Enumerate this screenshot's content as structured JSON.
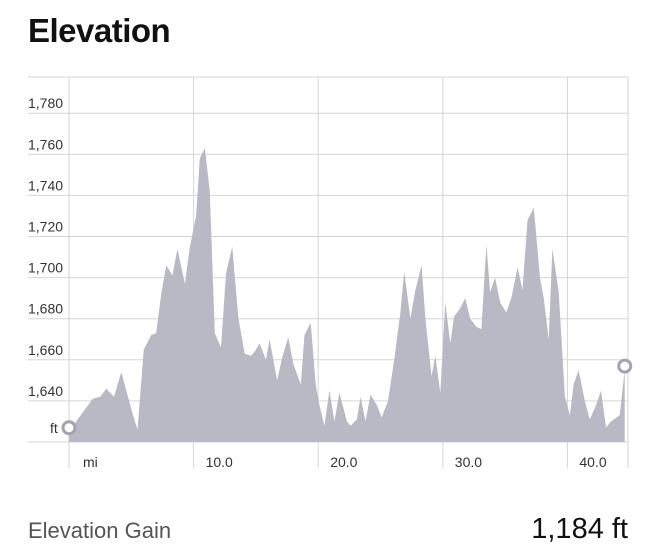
{
  "header": {
    "title": "Elevation"
  },
  "colors": {
    "area_fill": "#b9b8c5",
    "grid": "#d6d6d6",
    "marker": "#a3a2b0"
  },
  "chart_data": {
    "type": "area",
    "ylabel_unit": "ft",
    "xlabel_unit": "mi",
    "ylim": [
      1620,
      1800
    ],
    "xlim": [
      0,
      44.6
    ],
    "yticks": [
      {
        "value": 1640,
        "label": "1,640"
      },
      {
        "value": 1660,
        "label": "1,660"
      },
      {
        "value": 1680,
        "label": "1,680"
      },
      {
        "value": 1700,
        "label": "1,700"
      },
      {
        "value": 1720,
        "label": "1,720"
      },
      {
        "value": 1740,
        "label": "1,740"
      },
      {
        "value": 1760,
        "label": "1,760"
      },
      {
        "value": 1780,
        "label": "1,780"
      }
    ],
    "xticks": [
      {
        "value": 10,
        "label": "10.0"
      },
      {
        "value": 20,
        "label": "20.0"
      },
      {
        "value": 30,
        "label": "30.0"
      },
      {
        "value": 40,
        "label": "40.0"
      }
    ],
    "grid": true,
    "series": [
      {
        "x": [
          0,
          0.7,
          1.3,
          1.9,
          2.5,
          3.0,
          3.6,
          4.2,
          4.6,
          5.1,
          5.5,
          6.0,
          6.6,
          7.0,
          7.4,
          7.8,
          8.3,
          8.7,
          9.3,
          9.7,
          10.2,
          10.5,
          10.9,
          11.3,
          11.7,
          12.2,
          12.6,
          13.1,
          13.6,
          14.1,
          14.6,
          14.9,
          15.3,
          15.8,
          16.1,
          16.7,
          17.1,
          17.6,
          18.0,
          18.6,
          18.9,
          19.4,
          19.8,
          20.1,
          20.5,
          20.9,
          21.3,
          21.7,
          22.3,
          22.6,
          23.1,
          23.4,
          23.8,
          24.2,
          24.7,
          25.1,
          25.6,
          26.1,
          26.6,
          26.9,
          27.4,
          27.8,
          28.3,
          28.6,
          29.1,
          29.4,
          29.8,
          30.2,
          30.6,
          30.9,
          31.4,
          31.8,
          32.2,
          32.7,
          33.1,
          33.5,
          33.8,
          34.2,
          34.6,
          35.1,
          35.5,
          36.0,
          36.4,
          36.8,
          37.3,
          37.8,
          38.1,
          38.5,
          38.8,
          39.3,
          39.8,
          40.2,
          40.5,
          40.9,
          41.4,
          41.8,
          42.3,
          42.7,
          43.1,
          43.5,
          44.2,
          44.6
        ],
        "y": [
          1625,
          1631,
          1636,
          1641,
          1642,
          1646,
          1642,
          1654,
          1645,
          1634,
          1626,
          1665,
          1672,
          1673,
          1692,
          1706,
          1701,
          1714,
          1697,
          1715,
          1730,
          1758,
          1763,
          1742,
          1673,
          1666,
          1702,
          1715,
          1680,
          1663,
          1662,
          1664,
          1668,
          1660,
          1670,
          1650,
          1661,
          1671,
          1658,
          1648,
          1672,
          1678,
          1648,
          1638,
          1628,
          1645,
          1630,
          1644,
          1630,
          1628,
          1631,
          1642,
          1630,
          1643,
          1638,
          1632,
          1640,
          1660,
          1683,
          1703,
          1680,
          1694,
          1706,
          1680,
          1652,
          1662,
          1644,
          1688,
          1668,
          1681,
          1685,
          1690,
          1680,
          1676,
          1675,
          1716,
          1693,
          1700,
          1688,
          1683,
          1690,
          1705,
          1694,
          1728,
          1734,
          1700,
          1690,
          1670,
          1714,
          1693,
          1642,
          1633,
          1648,
          1655,
          1640,
          1631,
          1638,
          1645,
          1627,
          1630,
          1633,
          1655
        ]
      }
    ],
    "markers": [
      {
        "x": 0,
        "y": 1625
      },
      {
        "x": 44.6,
        "y": 1655
      }
    ]
  },
  "summary": {
    "label": "Elevation Gain",
    "value": "1,184 ft"
  }
}
